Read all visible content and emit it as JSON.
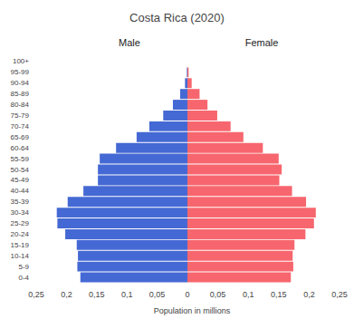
{
  "chart_data": {
    "type": "bar",
    "orientation": "horizontal",
    "title": "Costa Rica (2020)",
    "x_label": "Population in millions",
    "categories": [
      "0-4",
      "5-9",
      "10-14",
      "15-19",
      "20-24",
      "25-29",
      "30-34",
      "35-39",
      "40-44",
      "45-49",
      "50-54",
      "55-59",
      "60-64",
      "65-69",
      "70-74",
      "75-79",
      "80-84",
      "85-89",
      "90-94",
      "95-99",
      "100+"
    ],
    "series": [
      {
        "name": "Male",
        "color": "#4569d4",
        "values": [
          0.177,
          0.182,
          0.181,
          0.183,
          0.202,
          0.215,
          0.216,
          0.198,
          0.172,
          0.148,
          0.148,
          0.145,
          0.118,
          0.084,
          0.063,
          0.04,
          0.024,
          0.012,
          0.004,
          0.001,
          0.0
        ]
      },
      {
        "name": "Female",
        "color": "#f7666e",
        "values": [
          0.17,
          0.174,
          0.173,
          0.176,
          0.194,
          0.208,
          0.211,
          0.195,
          0.172,
          0.151,
          0.155,
          0.15,
          0.124,
          0.092,
          0.071,
          0.049,
          0.033,
          0.02,
          0.007,
          0.002,
          0.0
        ]
      }
    ],
    "xlim": [
      0,
      0.25
    ],
    "xticks": [
      0,
      {
        "value": 0.05,
        "label": "0,05"
      },
      {
        "value": 0.1,
        "label": "0,1"
      },
      {
        "value": 0.15,
        "label": "0,15"
      },
      {
        "value": 0.2,
        "label": "0,2"
      },
      {
        "value": 0.25,
        "label": "0,25"
      }
    ],
    "grid": false
  }
}
